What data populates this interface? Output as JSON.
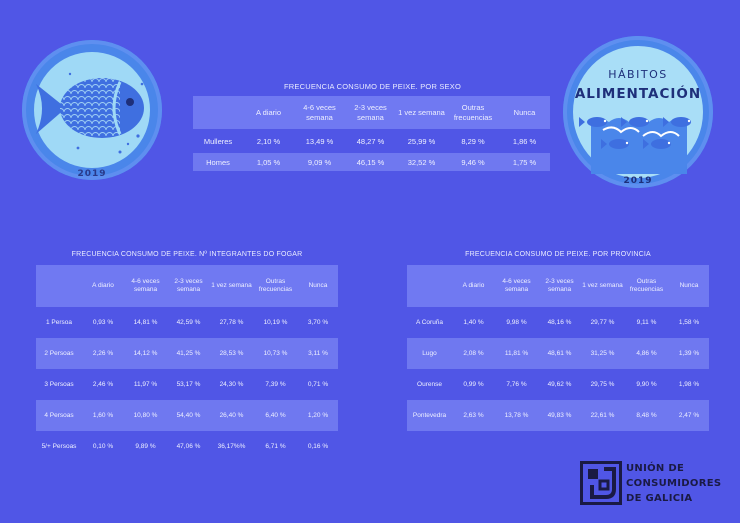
{
  "left_badge": {
    "year": "2019"
  },
  "right_badge": {
    "line1": "HÁBITOS",
    "line2": "ALIMENTACIÓN",
    "year": "2019"
  },
  "columns": [
    "A diario",
    "4-6 veces semana",
    "2-3 veces semana",
    "1 vez semana",
    "Outras frecuencias",
    "Nunca"
  ],
  "table_sexo": {
    "title": "FRECUENCIA CONSUMO DE PEIXE. POR SEXO",
    "rows": [
      {
        "label": "Mulleres",
        "values": [
          "2,10 %",
          "13,49 %",
          "48,27 %",
          "25,99 %",
          "8,29 %",
          "1,86 %"
        ]
      },
      {
        "label": "Homes",
        "values": [
          "1,05 %",
          "9,09 %",
          "46,15 %",
          "32,52 %",
          "9,46 %",
          "1,75 %"
        ]
      }
    ]
  },
  "table_fogar": {
    "title": "FRECUENCIA CONSUMO DE PEIXE. Nº INTEGRANTES DO FOGAR",
    "rows": [
      {
        "label": "1 Persoa",
        "values": [
          "0,93 %",
          "14,81 %",
          "42,59 %",
          "27,78 %",
          "10,19 %",
          "3,70 %"
        ]
      },
      {
        "label": "2 Persoas",
        "values": [
          "2,26 %",
          "14,12 %",
          "41,25 %",
          "28,53 %",
          "10,73 %",
          "3,11 %"
        ]
      },
      {
        "label": "3 Persoas",
        "values": [
          "2,46 %",
          "11,97 %",
          "53,17 %",
          "24,30 %",
          "7,39 %",
          "0,71 %"
        ]
      },
      {
        "label": "4 Persoas",
        "values": [
          "1,60 %",
          "10,80 %",
          "54,40 %",
          "26,40 %",
          "6,40 %",
          "1,20 %"
        ]
      },
      {
        "label": "5/+ Persoas",
        "values": [
          "0,10 %",
          "9,89 %",
          "47,06 %",
          "36,17%%",
          "6,71 %",
          "0,16 %"
        ]
      }
    ]
  },
  "table_provincia": {
    "title": "FRECUENCIA CONSUMO DE PEIXE. POR PROVINCIA",
    "rows": [
      {
        "label": "A Coruña",
        "values": [
          "1,40 %",
          "9,98 %",
          "48,16 %",
          "29,77 %",
          "9,11 %",
          "1,58 %"
        ]
      },
      {
        "label": "Lugo",
        "values": [
          "2,08 %",
          "11,81 %",
          "48,61 %",
          "31,25 %",
          "4,86 %",
          "1,39 %"
        ]
      },
      {
        "label": "Ourense",
        "values": [
          "0,99 %",
          "7,76 %",
          "49,62 %",
          "29,75 %",
          "9,90 %",
          "1,98 %"
        ]
      },
      {
        "label": "Pontevedra",
        "values": [
          "2,63 %",
          "13,78 %",
          "49,83 %",
          "22,61 %",
          "8,48 %",
          "2,47 %"
        ]
      }
    ]
  },
  "logo": {
    "line1": "UNIÓN DE",
    "line2": "CONSUMIDORES",
    "line3": "DE GALICIA"
  }
}
